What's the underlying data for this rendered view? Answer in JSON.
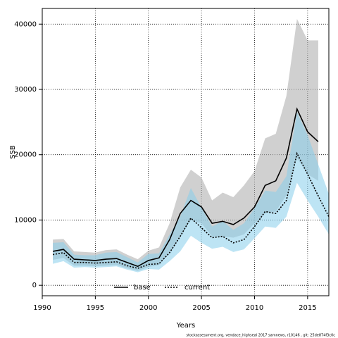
{
  "chart_data": {
    "type": "line",
    "xlabel": "Years",
    "ylabel": "SSB",
    "footer": "stockassessment.org, vendace_highseal 2017 samnews, r10146 , git: 25de874f3c0c",
    "xlim": [
      1990,
      2017
    ],
    "xticks": [
      1990,
      1995,
      2000,
      2005,
      2010,
      2015
    ],
    "ylim": [
      -1600,
      42400
    ],
    "yticks": [
      0,
      10000,
      20000,
      30000,
      40000
    ],
    "grid": true,
    "legend": "bottom",
    "series": [
      {
        "name": "base",
        "color": "#000000",
        "band_color": "#a9a9a9",
        "linestyle": "solid",
        "x": [
          1991,
          1992,
          1993,
          1994,
          1995,
          1996,
          1997,
          1998,
          1999,
          2000,
          2001,
          2002,
          2003,
          2004,
          2005,
          2006,
          2007,
          2008,
          2009,
          2010,
          2011,
          2012,
          2013,
          2014,
          2015,
          2016
        ],
        "values": [
          5200,
          5500,
          4000,
          3900,
          3800,
          4000,
          4100,
          3500,
          2900,
          3800,
          4200,
          7000,
          11000,
          13000,
          12000,
          9500,
          9800,
          9300,
          10300,
          12000,
          15300,
          16000,
          19500,
          27000,
          23500,
          22000
        ],
        "upper": [
          7000,
          7100,
          5200,
          5100,
          5000,
          5400,
          5500,
          4700,
          4000,
          5300,
          5800,
          9500,
          15000,
          17700,
          16500,
          13000,
          14200,
          13500,
          15300,
          17500,
          22500,
          23200,
          29000,
          40800,
          37500,
          37500
        ],
        "lower": [
          3900,
          4200,
          3000,
          3000,
          2900,
          3000,
          3100,
          2600,
          2200,
          2800,
          3100,
          5000,
          7500,
          10000,
          9500,
          7500,
          7500,
          7300,
          7800,
          9500,
          11000,
          11300,
          13800,
          19500,
          17000,
          16000
        ]
      },
      {
        "name": "current",
        "color": "#000000",
        "band_color": "#87ceeb",
        "linestyle": "dotted",
        "x": [
          1991,
          1992,
          1993,
          1994,
          1995,
          1996,
          1997,
          1998,
          1999,
          2000,
          2001,
          2002,
          2003,
          2004,
          2005,
          2006,
          2007,
          2008,
          2009,
          2010,
          2011,
          2012,
          2013,
          2014,
          2015,
          2016,
          2017
        ],
        "values": [
          4700,
          5000,
          3500,
          3500,
          3400,
          3500,
          3600,
          3000,
          2600,
          3200,
          3300,
          5000,
          7500,
          10300,
          8800,
          7300,
          7500,
          6500,
          7000,
          9000,
          11300,
          11000,
          13000,
          20200,
          17000,
          13700,
          10500
        ],
        "upper": [
          6500,
          6600,
          4700,
          4600,
          4600,
          5000,
          5100,
          4300,
          3500,
          4800,
          4900,
          7800,
          10500,
          14900,
          11900,
          9000,
          9800,
          8500,
          9500,
          11800,
          14500,
          14300,
          16700,
          26500,
          23000,
          18500,
          14000
        ],
        "lower": [
          3300,
          3700,
          2700,
          2800,
          2700,
          2800,
          2900,
          2400,
          2000,
          2500,
          2400,
          3700,
          5200,
          7600,
          6500,
          5600,
          5900,
          5100,
          5500,
          7200,
          9000,
          8800,
          10500,
          15700,
          13000,
          10500,
          7800
        ]
      }
    ]
  }
}
